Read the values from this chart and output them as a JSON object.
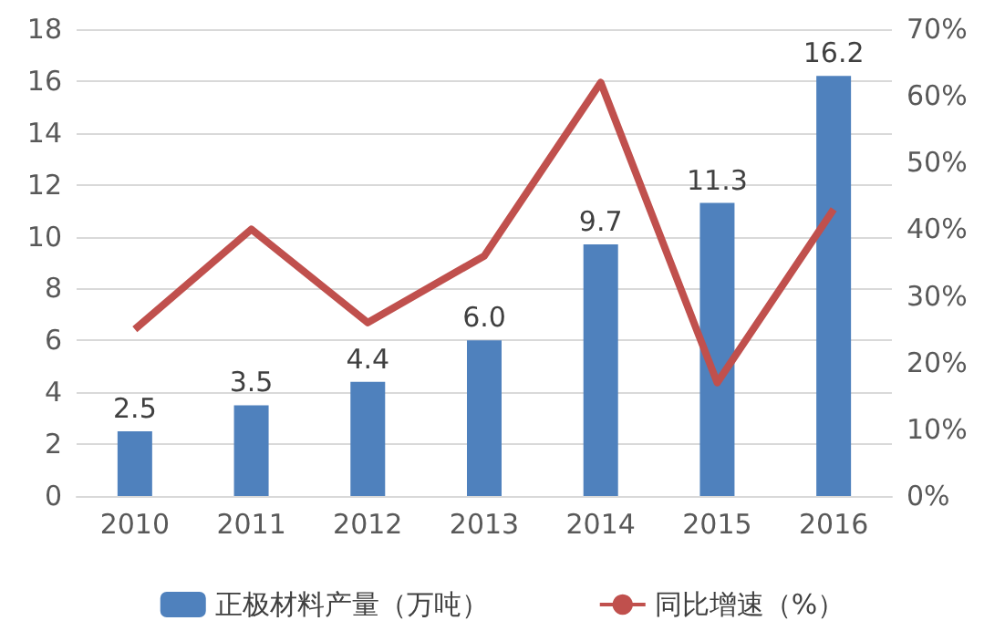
{
  "chart_data": {
    "type": "bar",
    "categories": [
      "2010",
      "2011",
      "2012",
      "2013",
      "2014",
      "2015",
      "2016"
    ],
    "series": [
      {
        "name": "正极材料产量（万吨）",
        "color": "#4f81bd",
        "values": [
          2.5,
          3.5,
          4.4,
          6.0,
          9.7,
          11.3,
          16.2
        ]
      },
      {
        "name": "同比增速（%）",
        "type": "line",
        "axis": "y2",
        "color": "#c0504d",
        "values": [
          25,
          40,
          26,
          36,
          62,
          17,
          43
        ]
      }
    ],
    "value_labels": [
      "2.5",
      "3.5",
      "4.4",
      "6.0",
      "9.7",
      "11.3",
      "16.2"
    ],
    "ylim": [
      0,
      18
    ],
    "yticks": [
      0,
      2,
      4,
      6,
      8,
      10,
      12,
      14,
      16,
      18
    ],
    "y2lim": [
      0,
      70
    ],
    "y2ticks": [
      {
        "value": 0,
        "label": "0%"
      },
      {
        "value": 10,
        "label": "10%"
      },
      {
        "value": 20,
        "label": "20%"
      },
      {
        "value": 30,
        "label": "30%"
      },
      {
        "value": 40,
        "label": "40%"
      },
      {
        "value": 50,
        "label": "50%"
      },
      {
        "value": 60,
        "label": "60%"
      },
      {
        "value": 70,
        "label": "70%"
      }
    ],
    "grid": "y",
    "legend": "bottom",
    "marker": "none"
  }
}
